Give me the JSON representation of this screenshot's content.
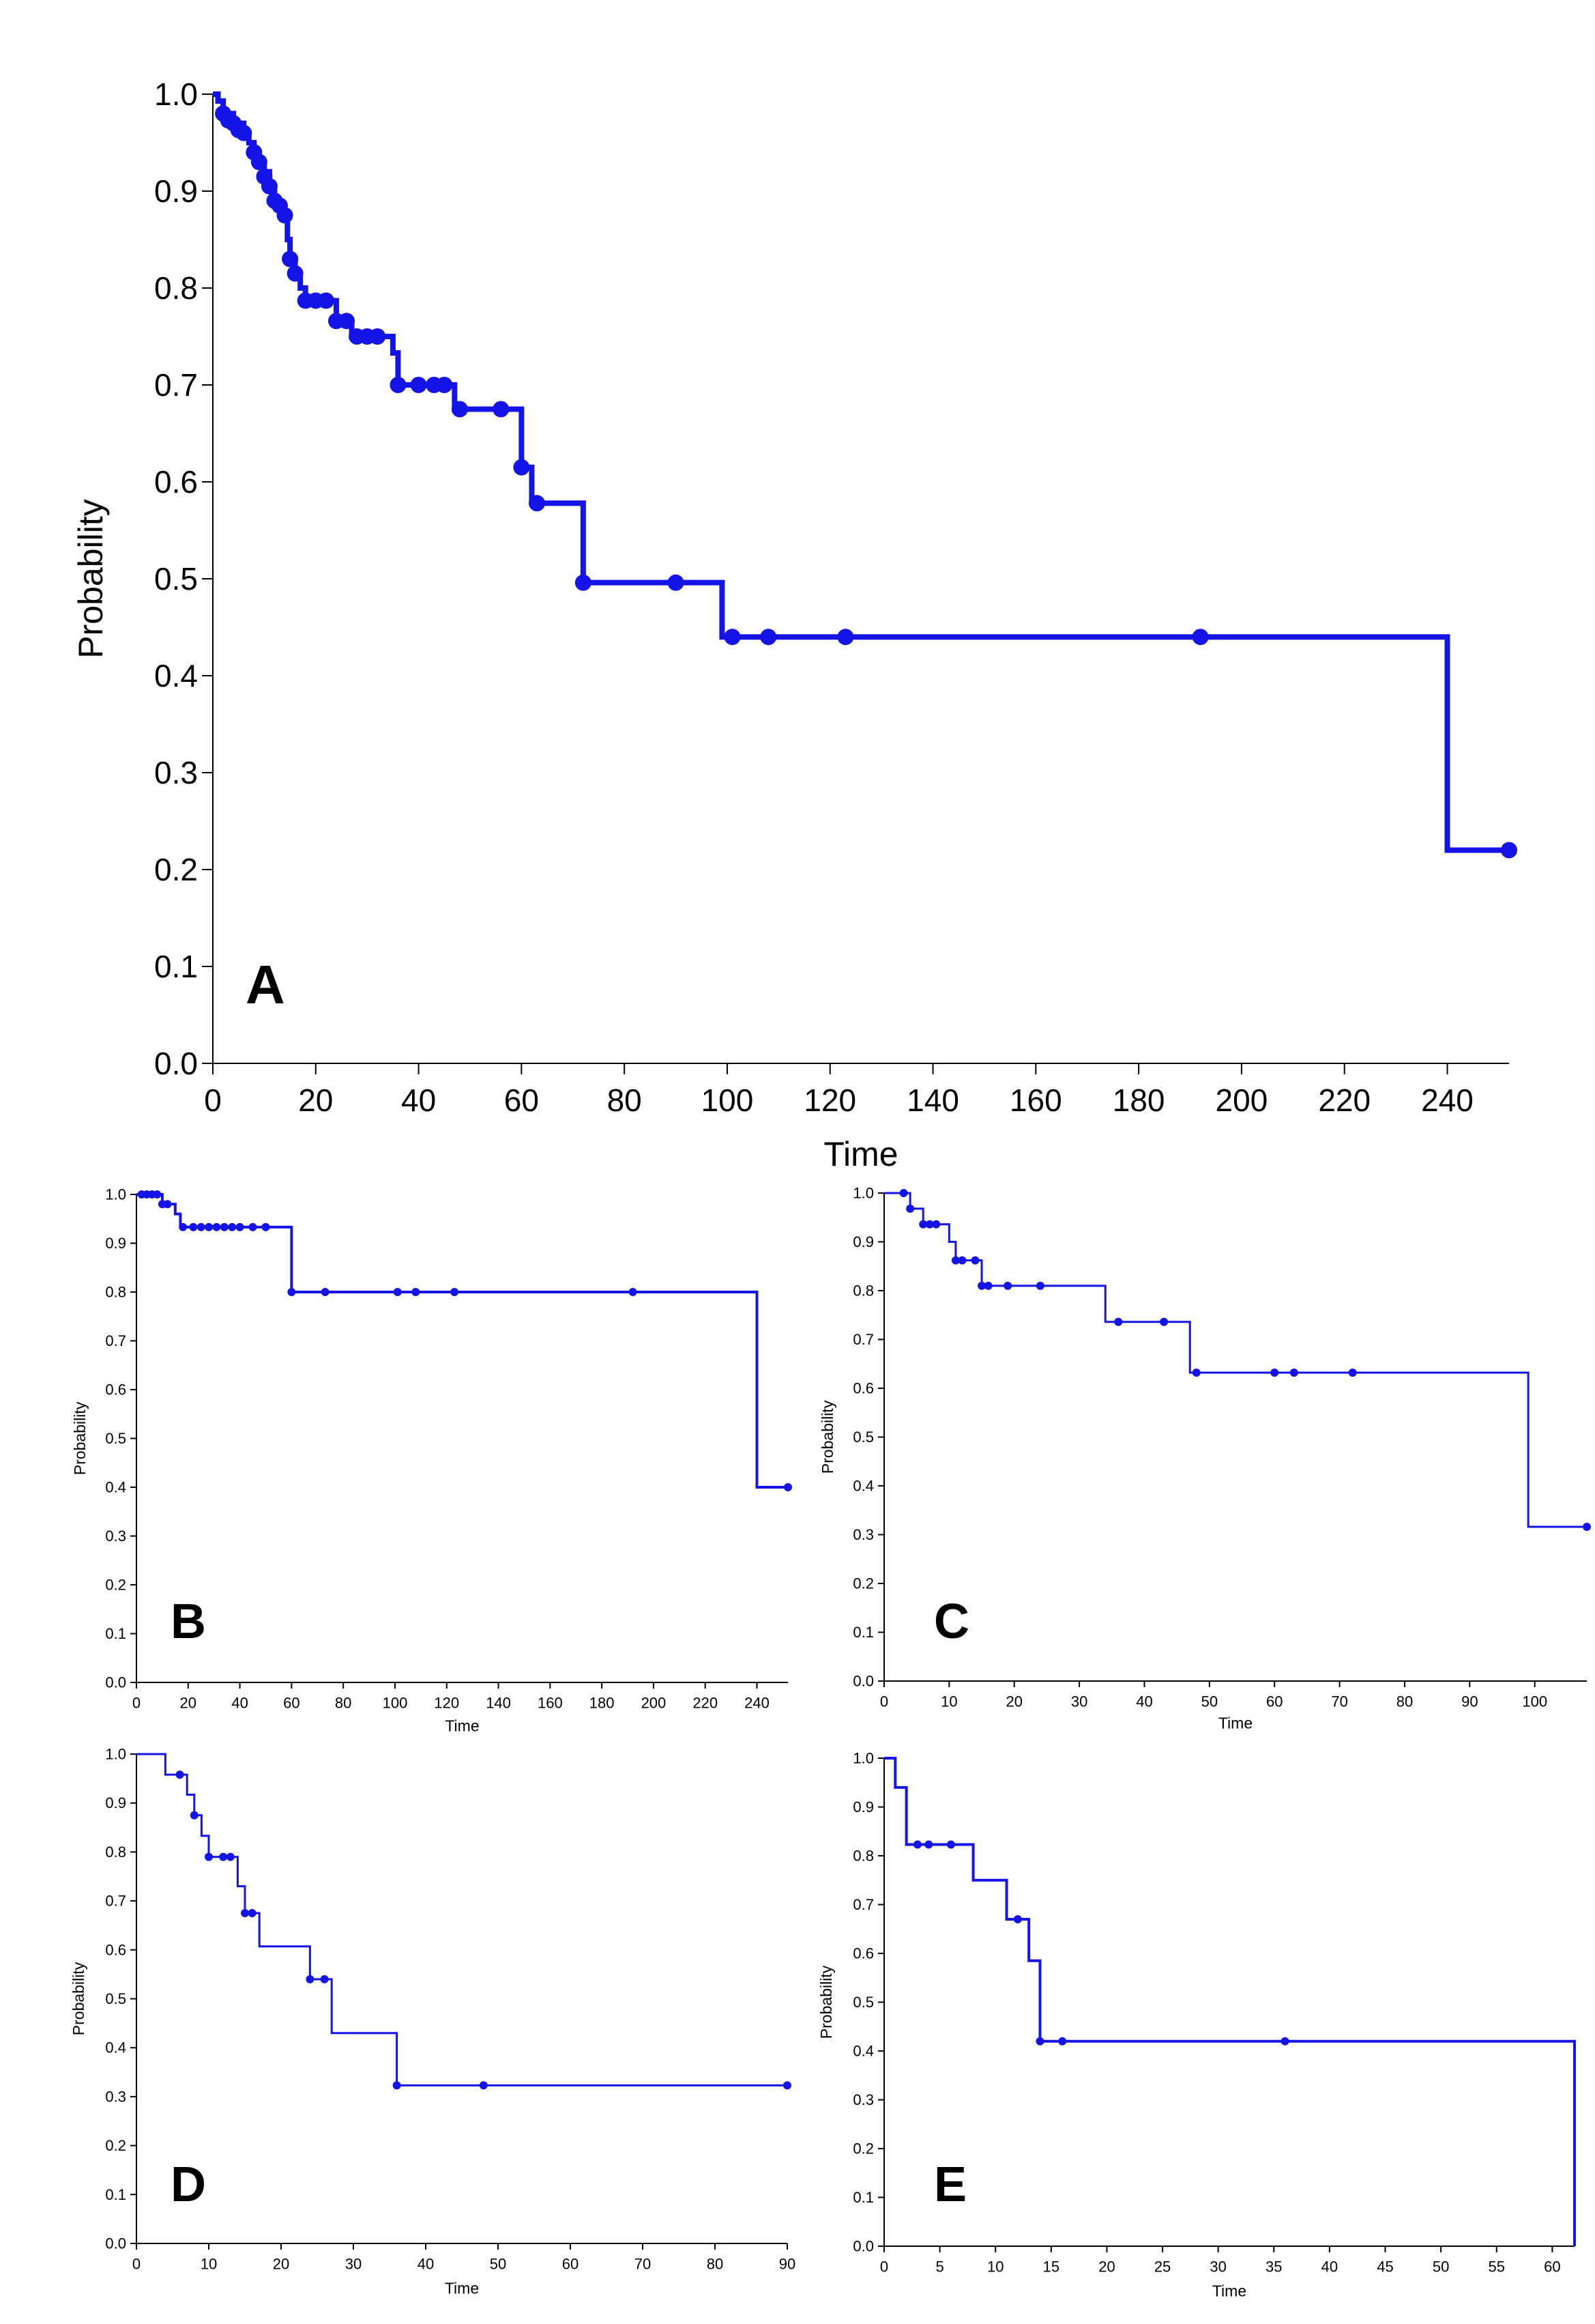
{
  "chart_data": [
    {
      "type": "line",
      "subtype": "kaplan-meier",
      "panel_label": "A",
      "xlabel": "Time",
      "ylabel": "Probability",
      "xlim": [
        0,
        252
      ],
      "ylim": [
        0,
        1
      ],
      "xticks": [
        0,
        20,
        40,
        60,
        80,
        100,
        120,
        140,
        160,
        180,
        200,
        220,
        240
      ],
      "xtick_labels": [
        "0",
        "20",
        "40",
        "60",
        "80",
        "100",
        "120",
        "140",
        "160",
        "180",
        "200",
        "220",
        "240"
      ],
      "yticks": [
        0,
        0.1,
        0.2,
        0.3,
        0.4,
        0.5,
        0.6,
        0.7,
        0.8,
        0.9,
        1.0
      ],
      "ytick_labels": [
        "0.0",
        "0.1",
        "0.2",
        "0.3",
        "0.4",
        "0.5",
        "0.6",
        "0.7",
        "0.8",
        "0.9",
        "1.0"
      ],
      "steps": [
        [
          0,
          1.0
        ],
        [
          1,
          0.993
        ],
        [
          2,
          0.98
        ],
        [
          4,
          0.97
        ],
        [
          6,
          0.96
        ],
        [
          7,
          0.95
        ],
        [
          8,
          0.94
        ],
        [
          9,
          0.93
        ],
        [
          10,
          0.92
        ],
        [
          11,
          0.905
        ],
        [
          12,
          0.89
        ],
        [
          13,
          0.88
        ],
        [
          14,
          0.87
        ],
        [
          14.5,
          0.85
        ],
        [
          15,
          0.83
        ],
        [
          16,
          0.815
        ],
        [
          17,
          0.8
        ],
        [
          18,
          0.787
        ],
        [
          24,
          0.766
        ],
        [
          27,
          0.75
        ],
        [
          35,
          0.733
        ],
        [
          36,
          0.7
        ],
        [
          47,
          0.675
        ],
        [
          60,
          0.615
        ],
        [
          62,
          0.578
        ],
        [
          72,
          0.496
        ],
        [
          99,
          0.44
        ],
        [
          240,
          0.22
        ],
        [
          252,
          0.22
        ]
      ],
      "censored": [
        [
          2,
          0.98
        ],
        [
          3,
          0.973
        ],
        [
          4,
          0.97
        ],
        [
          5,
          0.963
        ],
        [
          6,
          0.96
        ],
        [
          8,
          0.94
        ],
        [
          9,
          0.93
        ],
        [
          10,
          0.915
        ],
        [
          11,
          0.905
        ],
        [
          12,
          0.89
        ],
        [
          13,
          0.885
        ],
        [
          14,
          0.875
        ],
        [
          15,
          0.83
        ],
        [
          16,
          0.815
        ],
        [
          18,
          0.787
        ],
        [
          20,
          0.787
        ],
        [
          22,
          0.787
        ],
        [
          24,
          0.766
        ],
        [
          26,
          0.766
        ],
        [
          28,
          0.75
        ],
        [
          30,
          0.75
        ],
        [
          32,
          0.75
        ],
        [
          36,
          0.7
        ],
        [
          40,
          0.7
        ],
        [
          43,
          0.7
        ],
        [
          45,
          0.7
        ],
        [
          48,
          0.675
        ],
        [
          56,
          0.675
        ],
        [
          60,
          0.615
        ],
        [
          63,
          0.578
        ],
        [
          72,
          0.496
        ],
        [
          90,
          0.496
        ],
        [
          101,
          0.44
        ],
        [
          108,
          0.44
        ],
        [
          123,
          0.44
        ],
        [
          192,
          0.44
        ],
        [
          252,
          0.22
        ]
      ]
    },
    {
      "type": "line",
      "subtype": "kaplan-meier",
      "panel_label": "B",
      "xlabel": "Time",
      "ylabel": "Probability",
      "xlim": [
        0,
        252
      ],
      "ylim": [
        0,
        1
      ],
      "xticks": [
        0,
        20,
        40,
        60,
        80,
        100,
        120,
        140,
        160,
        180,
        200,
        220,
        240
      ],
      "xtick_labels": [
        "0",
        "20",
        "40",
        "60",
        "80",
        "100",
        "120",
        "140",
        "160",
        "180",
        "200",
        "220",
        "240"
      ],
      "yticks": [
        0,
        0.1,
        0.2,
        0.3,
        0.4,
        0.5,
        0.6,
        0.7,
        0.8,
        0.9,
        1.0
      ],
      "ytick_labels": [
        "0.0",
        "0.1",
        "0.2",
        "0.3",
        "0.4",
        "0.5",
        "0.6",
        "0.7",
        "0.8",
        "0.9",
        "1.0"
      ],
      "steps": [
        [
          0,
          1.0
        ],
        [
          10,
          0.98
        ],
        [
          15,
          0.96
        ],
        [
          17,
          0.933
        ],
        [
          60,
          0.8
        ],
        [
          240,
          0.4
        ],
        [
          252,
          0.4
        ]
      ],
      "censored": [
        [
          2,
          1.0
        ],
        [
          4,
          1.0
        ],
        [
          6,
          1.0
        ],
        [
          8,
          1.0
        ],
        [
          10,
          0.98
        ],
        [
          12,
          0.98
        ],
        [
          18,
          0.933
        ],
        [
          22,
          0.933
        ],
        [
          25,
          0.933
        ],
        [
          28,
          0.933
        ],
        [
          31,
          0.933
        ],
        [
          34,
          0.933
        ],
        [
          37,
          0.933
        ],
        [
          40,
          0.933
        ],
        [
          45,
          0.933
        ],
        [
          50,
          0.933
        ],
        [
          60,
          0.8
        ],
        [
          73,
          0.8
        ],
        [
          101,
          0.8
        ],
        [
          108,
          0.8
        ],
        [
          123,
          0.8
        ],
        [
          192,
          0.8
        ],
        [
          252,
          0.4
        ]
      ]
    },
    {
      "type": "line",
      "subtype": "kaplan-meier",
      "panel_label": "C",
      "xlabel": "Time",
      "ylabel": "Probability",
      "xlim": [
        0,
        108
      ],
      "ylim": [
        0,
        1
      ],
      "xticks": [
        0,
        10,
        20,
        30,
        40,
        50,
        60,
        70,
        80,
        90,
        100
      ],
      "xtick_labels": [
        "0",
        "10",
        "20",
        "30",
        "40",
        "50",
        "60",
        "70",
        "80",
        "90",
        "100"
      ],
      "yticks": [
        0,
        0.1,
        0.2,
        0.3,
        0.4,
        0.5,
        0.6,
        0.7,
        0.8,
        0.9,
        1.0
      ],
      "ytick_labels": [
        "0.0",
        "0.1",
        "0.2",
        "0.3",
        "0.4",
        "0.5",
        "0.6",
        "0.7",
        "0.8",
        "0.9",
        "1.0"
      ],
      "steps": [
        [
          0,
          1.0
        ],
        [
          4,
          0.968
        ],
        [
          6,
          0.936
        ],
        [
          10,
          0.9
        ],
        [
          11,
          0.862
        ],
        [
          15,
          0.81
        ],
        [
          34,
          0.736
        ],
        [
          47,
          0.632
        ],
        [
          99,
          0.316
        ],
        [
          108,
          0.316
        ]
      ],
      "censored": [
        [
          3,
          1.0
        ],
        [
          4,
          0.968
        ],
        [
          6,
          0.936
        ],
        [
          7,
          0.936
        ],
        [
          8,
          0.936
        ],
        [
          11,
          0.862
        ],
        [
          12,
          0.862
        ],
        [
          14,
          0.862
        ],
        [
          15,
          0.81
        ],
        [
          16,
          0.81
        ],
        [
          19,
          0.81
        ],
        [
          24,
          0.81
        ],
        [
          36,
          0.736
        ],
        [
          43,
          0.736
        ],
        [
          48,
          0.632
        ],
        [
          60,
          0.632
        ],
        [
          63,
          0.632
        ],
        [
          72,
          0.632
        ],
        [
          108,
          0.316
        ]
      ]
    },
    {
      "type": "line",
      "subtype": "kaplan-meier",
      "panel_label": "D",
      "xlabel": "Time",
      "ylabel": "Probability",
      "xlim": [
        0,
        90
      ],
      "ylim": [
        0,
        1
      ],
      "xticks": [
        0,
        10,
        20,
        30,
        40,
        50,
        60,
        70,
        80,
        90
      ],
      "xtick_labels": [
        "0",
        "10",
        "20",
        "30",
        "40",
        "50",
        "60",
        "70",
        "80",
        "90"
      ],
      "yticks": [
        0,
        0.1,
        0.2,
        0.3,
        0.4,
        0.5,
        0.6,
        0.7,
        0.8,
        0.9,
        1.0
      ],
      "ytick_labels": [
        "0.0",
        "0.1",
        "0.2",
        "0.3",
        "0.4",
        "0.5",
        "0.6",
        "0.7",
        "0.8",
        "0.9",
        "1.0"
      ],
      "steps": [
        [
          0,
          1.0
        ],
        [
          4,
          0.958
        ],
        [
          7,
          0.917
        ],
        [
          8,
          0.875
        ],
        [
          9,
          0.833
        ],
        [
          10,
          0.79
        ],
        [
          14,
          0.73
        ],
        [
          15,
          0.675
        ],
        [
          17,
          0.607
        ],
        [
          24,
          0.54
        ],
        [
          27,
          0.43
        ],
        [
          36,
          0.323
        ],
        [
          90,
          0.323
        ]
      ],
      "censored": [
        [
          6,
          0.958
        ],
        [
          8,
          0.875
        ],
        [
          10,
          0.79
        ],
        [
          12,
          0.79
        ],
        [
          13,
          0.79
        ],
        [
          15,
          0.675
        ],
        [
          16,
          0.675
        ],
        [
          24,
          0.54
        ],
        [
          26,
          0.54
        ],
        [
          36,
          0.323
        ],
        [
          48,
          0.323
        ],
        [
          90,
          0.323
        ]
      ]
    },
    {
      "type": "line",
      "subtype": "kaplan-meier",
      "panel_label": "E",
      "xlabel": "Time",
      "ylabel": "Probability",
      "xlim": [
        0,
        62
      ],
      "ylim": [
        0,
        1
      ],
      "xticks": [
        0,
        5,
        10,
        15,
        20,
        25,
        30,
        35,
        40,
        45,
        50,
        55,
        60
      ],
      "xtick_labels": [
        "0",
        "5",
        "10",
        "15",
        "20",
        "25",
        "30",
        "35",
        "40",
        "45",
        "50",
        "55",
        "60"
      ],
      "yticks": [
        0,
        0.1,
        0.2,
        0.3,
        0.4,
        0.5,
        0.6,
        0.7,
        0.8,
        0.9,
        1.0
      ],
      "ytick_labels": [
        "0.0",
        "0.1",
        "0.2",
        "0.3",
        "0.4",
        "0.5",
        "0.6",
        "0.7",
        "0.8",
        "0.9",
        "1.0"
      ],
      "steps": [
        [
          0,
          1.0
        ],
        [
          1,
          0.94
        ],
        [
          2,
          0.823
        ],
        [
          8,
          0.75
        ],
        [
          11,
          0.67
        ],
        [
          13,
          0.585
        ],
        [
          14,
          0.42
        ],
        [
          62,
          0.42
        ],
        [
          62,
          0.0
        ]
      ],
      "censored": [
        [
          3,
          0.823
        ],
        [
          4,
          0.823
        ],
        [
          6,
          0.823
        ],
        [
          12,
          0.67
        ],
        [
          14,
          0.42
        ],
        [
          16,
          0.42
        ],
        [
          36,
          0.42
        ]
      ]
    }
  ]
}
